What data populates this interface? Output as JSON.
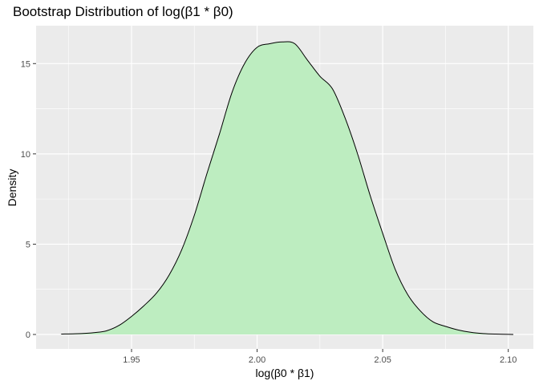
{
  "chart_data": {
    "type": "area",
    "title": "Bootstrap Distribution of log(β1 * β0)",
    "xlabel": "log(β0 * β1)",
    "ylabel": "Density",
    "xlim": [
      1.912,
      2.11
    ],
    "ylim": [
      -0.8,
      17.1
    ],
    "x_ticks": [
      1.95,
      2.0,
      2.05,
      2.1
    ],
    "x_tick_labels": [
      "1.95",
      "2.00",
      "2.05",
      "2.10"
    ],
    "y_ticks": [
      0,
      5,
      10,
      15
    ],
    "y_tick_labels": [
      "0",
      "5",
      "10",
      "15"
    ],
    "grid": true,
    "legend": "none",
    "series": [
      {
        "x": [
          1.922,
          1.93,
          1.935,
          1.94,
          1.945,
          1.95,
          1.955,
          1.96,
          1.965,
          1.97,
          1.975,
          1.98,
          1.985,
          1.99,
          1.995,
          2.0,
          2.005,
          2.01,
          2.015,
          2.02,
          2.025,
          2.03,
          2.035,
          2.04,
          2.045,
          2.05,
          2.055,
          2.06,
          2.065,
          2.07,
          2.075,
          2.08,
          2.085,
          2.09,
          2.095,
          2.102
        ],
        "y": [
          0.02,
          0.05,
          0.1,
          0.2,
          0.5,
          1.0,
          1.6,
          2.3,
          3.3,
          4.7,
          6.6,
          8.9,
          11.1,
          13.4,
          15.0,
          15.9,
          16.1,
          16.2,
          16.1,
          15.2,
          14.3,
          13.6,
          12.0,
          10.0,
          7.7,
          5.6,
          3.6,
          2.2,
          1.3,
          0.7,
          0.45,
          0.25,
          0.12,
          0.05,
          0.02,
          0.0
        ]
      }
    ],
    "colors": {
      "fill": "#bdedc0",
      "line": "#000000",
      "panel": "#ebebeb",
      "grid": "#ffffff",
      "tick_text": "#4d4d4d"
    }
  }
}
